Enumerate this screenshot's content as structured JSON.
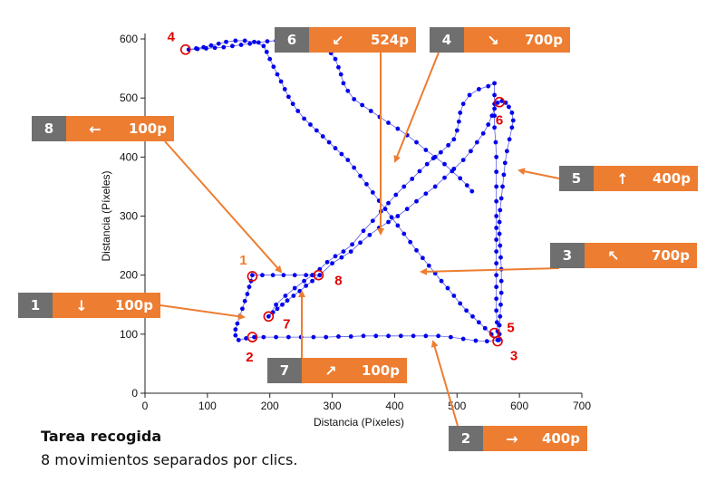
{
  "chart_data": {
    "type": "scatter",
    "xlabel": "Distancia (Píxeles)",
    "ylabel": "Distancia (Píxeles)",
    "xlim": [
      0,
      700
    ],
    "ylim": [
      0,
      600
    ],
    "xticks": [
      0,
      100,
      200,
      300,
      400,
      500,
      600,
      700
    ],
    "yticks": [
      0,
      100,
      200,
      300,
      400,
      500,
      600
    ],
    "grid": false,
    "colors": {
      "points": "#0000ee",
      "line": "#3333dd",
      "click": "#e00000",
      "callout": "#ed7d31",
      "badge": "#6f6f6f"
    },
    "path": [
      [
        280,
        200
      ],
      [
        300,
        220
      ],
      [
        315,
        230
      ],
      [
        330,
        240
      ],
      [
        345,
        255
      ],
      [
        360,
        268
      ],
      [
        375,
        280
      ],
      [
        390,
        290
      ],
      [
        405,
        300
      ],
      [
        420,
        312
      ],
      [
        435,
        325
      ],
      [
        450,
        338
      ],
      [
        465,
        350
      ],
      [
        480,
        365
      ],
      [
        495,
        380
      ],
      [
        510,
        395
      ],
      [
        522,
        410
      ],
      [
        532,
        425
      ],
      [
        542,
        440
      ],
      [
        550,
        455
      ],
      [
        556,
        470
      ],
      [
        560,
        482
      ],
      [
        565,
        492
      ],
      [
        572,
        495
      ],
      [
        578,
        492
      ],
      [
        583,
        485
      ],
      [
        588,
        475
      ],
      [
        590,
        462
      ],
      [
        588,
        450
      ],
      [
        584,
        430
      ],
      [
        580,
        410
      ],
      [
        577,
        390
      ],
      [
        575,
        370
      ],
      [
        573,
        350
      ],
      [
        571,
        330
      ],
      [
        569,
        310
      ],
      [
        568,
        290
      ],
      [
        568,
        270
      ],
      [
        569,
        250
      ],
      [
        570,
        230
      ],
      [
        571,
        210
      ],
      [
        571,
        190
      ],
      [
        571,
        170
      ],
      [
        570,
        150
      ],
      [
        569,
        130
      ],
      [
        568,
        115
      ],
      [
        568,
        100
      ],
      [
        567,
        90
      ],
      [
        548,
        88
      ],
      [
        530,
        89
      ],
      [
        510,
        92
      ],
      [
        490,
        95
      ],
      [
        470,
        97
      ],
      [
        450,
        97
      ],
      [
        430,
        97
      ],
      [
        410,
        97
      ],
      [
        390,
        97
      ],
      [
        370,
        97
      ],
      [
        350,
        97
      ],
      [
        330,
        96
      ],
      [
        310,
        96
      ],
      [
        290,
        95
      ],
      [
        270,
        95
      ],
      [
        250,
        95
      ],
      [
        230,
        95
      ],
      [
        210,
        95
      ],
      [
        190,
        95
      ],
      [
        175,
        95
      ],
      [
        162,
        93
      ],
      [
        150,
        90
      ],
      [
        145,
        98
      ],
      [
        145,
        108
      ],
      [
        148,
        118
      ],
      [
        152,
        130
      ],
      [
        156,
        143
      ],
      [
        160,
        156
      ],
      [
        164,
        168
      ],
      [
        167,
        180
      ],
      [
        170,
        190
      ],
      [
        172,
        200
      ],
      [
        188,
        200
      ],
      [
        205,
        200
      ],
      [
        222,
        200
      ],
      [
        240,
        200
      ],
      [
        258,
        200
      ],
      [
        270,
        200
      ],
      [
        280,
        200
      ],
      [
        268,
        190
      ],
      [
        258,
        182
      ],
      [
        248,
        173
      ],
      [
        238,
        165
      ],
      [
        228,
        157
      ],
      [
        220,
        150
      ],
      [
        212,
        143
      ],
      [
        205,
        137
      ],
      [
        198,
        130
      ],
      [
        210,
        150
      ],
      [
        225,
        165
      ],
      [
        240,
        178
      ],
      [
        255,
        190
      ],
      [
        268,
        200
      ],
      [
        280,
        210
      ],
      [
        292,
        222
      ],
      [
        305,
        232
      ],
      [
        318,
        240
      ],
      [
        332,
        252
      ],
      [
        350,
        275
      ],
      [
        365,
        292
      ],
      [
        378,
        308
      ],
      [
        390,
        322
      ],
      [
        402,
        336
      ],
      [
        415,
        350
      ],
      [
        428,
        363
      ],
      [
        440,
        376
      ],
      [
        452,
        388
      ],
      [
        462,
        398
      ],
      [
        474,
        408
      ],
      [
        486,
        420
      ],
      [
        495,
        430
      ],
      [
        500,
        445
      ],
      [
        503,
        460
      ],
      [
        505,
        475
      ],
      [
        510,
        490
      ],
      [
        520,
        505
      ],
      [
        535,
        515
      ],
      [
        550,
        520
      ],
      [
        560,
        525
      ],
      [
        560,
        505
      ],
      [
        560,
        490
      ],
      [
        560,
        470
      ],
      [
        560,
        450
      ],
      [
        562,
        425
      ],
      [
        563,
        400
      ],
      [
        563,
        375
      ],
      [
        563,
        350
      ],
      [
        563,
        325
      ],
      [
        563,
        300
      ],
      [
        563,
        280
      ],
      [
        563,
        260
      ],
      [
        563,
        240
      ],
      [
        563,
        220
      ],
      [
        563,
        200
      ],
      [
        563,
        180
      ],
      [
        563,
        160
      ],
      [
        563,
        140
      ],
      [
        564,
        120
      ],
      [
        565,
        105
      ],
      [
        565,
        90
      ],
      [
        555,
        100
      ],
      [
        545,
        110
      ],
      [
        535,
        120
      ],
      [
        525,
        130
      ],
      [
        515,
        140
      ],
      [
        505,
        152
      ],
      [
        495,
        165
      ],
      [
        485,
        178
      ],
      [
        475,
        190
      ],
      [
        465,
        203
      ],
      [
        455,
        216
      ],
      [
        445,
        229
      ],
      [
        435,
        242
      ],
      [
        425,
        256
      ],
      [
        415,
        270
      ],
      [
        405,
        284
      ],
      [
        395,
        298
      ],
      [
        385,
        312
      ],
      [
        375,
        326
      ],
      [
        365,
        340
      ],
      [
        355,
        354
      ],
      [
        345,
        368
      ],
      [
        335,
        382
      ],
      [
        325,
        395
      ],
      [
        315,
        405
      ],
      [
        305,
        415
      ],
      [
        295,
        425
      ],
      [
        285,
        435
      ],
      [
        275,
        445
      ],
      [
        265,
        455
      ],
      [
        255,
        465
      ],
      [
        245,
        478
      ],
      [
        237,
        490
      ],
      [
        230,
        502
      ],
      [
        224,
        515
      ],
      [
        218,
        528
      ],
      [
        212,
        540
      ],
      [
        206,
        553
      ],
      [
        200,
        566
      ],
      [
        195,
        578
      ],
      [
        190,
        588
      ],
      [
        175,
        595
      ],
      [
        160,
        597
      ],
      [
        145,
        597
      ],
      [
        130,
        595
      ],
      [
        118,
        592
      ],
      [
        106,
        589
      ],
      [
        94,
        586
      ],
      [
        82,
        584
      ],
      [
        70,
        582
      ],
      [
        84,
        583
      ],
      [
        98,
        584
      ],
      [
        112,
        585
      ],
      [
        126,
        586
      ],
      [
        140,
        588
      ],
      [
        154,
        590
      ],
      [
        168,
        592
      ],
      [
        182,
        594
      ],
      [
        196,
        596
      ],
      [
        210,
        597
      ],
      [
        222,
        598
      ],
      [
        236,
        598
      ],
      [
        248,
        597
      ],
      [
        260,
        596
      ],
      [
        272,
        594
      ],
      [
        282,
        590
      ],
      [
        290,
        584
      ],
      [
        298,
        576
      ],
      [
        305,
        566
      ],
      [
        310,
        552
      ],
      [
        314,
        540
      ],
      [
        318,
        525
      ],
      [
        325,
        512
      ],
      [
        335,
        498
      ],
      [
        348,
        488
      ],
      [
        362,
        478
      ],
      [
        376,
        468
      ],
      [
        390,
        458
      ],
      [
        405,
        448
      ],
      [
        420,
        437
      ],
      [
        435,
        425
      ],
      [
        450,
        412
      ],
      [
        465,
        400
      ],
      [
        480,
        388
      ],
      [
        492,
        376
      ],
      [
        505,
        364
      ],
      [
        516,
        352
      ],
      [
        524,
        342
      ]
    ],
    "clicks": [
      {
        "label": "1",
        "x": 172,
        "y": 198
      },
      {
        "label": "2",
        "x": 172,
        "y": 95
      },
      {
        "label": "3",
        "x": 565,
        "y": 88
      },
      {
        "label": "4",
        "x": 65,
        "y": 582
      },
      {
        "label": "5",
        "x": 560,
        "y": 102
      },
      {
        "label": "6",
        "x": 568,
        "y": 493
      },
      {
        "label": "7",
        "x": 198,
        "y": 130
      },
      {
        "label": "8",
        "x": 278,
        "y": 200
      }
    ],
    "callouts": [
      {
        "n": "1",
        "arrow": "↓",
        "dist": "100p"
      },
      {
        "n": "2",
        "arrow": "→",
        "dist": "400p"
      },
      {
        "n": "3",
        "arrow": "↖",
        "dist": "700p"
      },
      {
        "n": "4",
        "arrow": "↘",
        "dist": "700p"
      },
      {
        "n": "5",
        "arrow": "↑",
        "dist": "400p"
      },
      {
        "n": "6",
        "arrow": "↙",
        "dist": "524p"
      },
      {
        "n": "7",
        "arrow": "↗",
        "dist": "100p"
      },
      {
        "n": "8",
        "arrow": "←",
        "dist": "100p"
      }
    ]
  },
  "caption": {
    "title": "Tarea recogida",
    "subtitle": "8 movimientos separados por clics."
  }
}
